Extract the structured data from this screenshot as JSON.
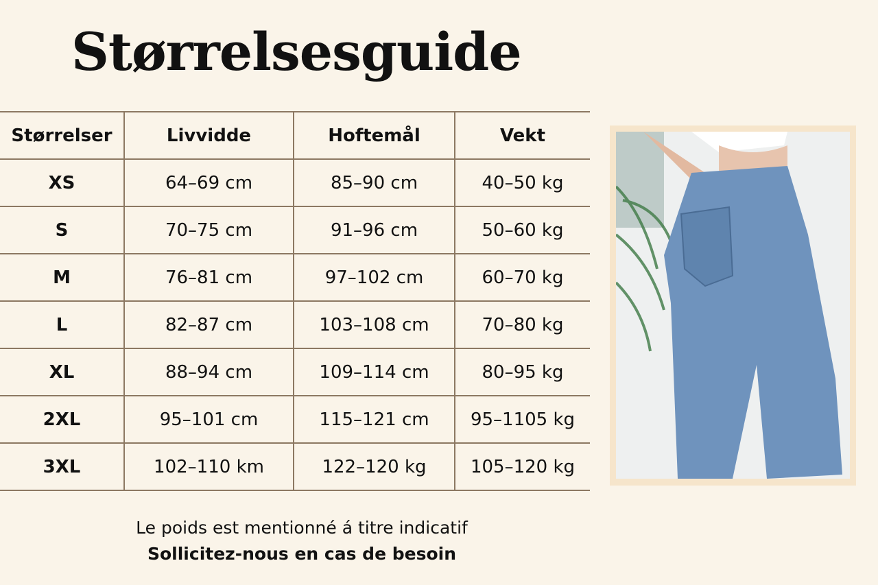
{
  "title": "Størrelsesguide",
  "table": {
    "headers": [
      "Størrelser",
      "Livvidde",
      "Hoftemål",
      "Vekt"
    ],
    "rows": [
      [
        "XS",
        "64–69 cm",
        "85–90 cm",
        "40–50 kg"
      ],
      [
        "S",
        "70–75 cm",
        "91–96 cm",
        "50–60 kg"
      ],
      [
        "M",
        "76–81 cm",
        "97–102 cm",
        "60–70 kg"
      ],
      [
        "L",
        "82–87 cm",
        "103–108 cm",
        "70–80 kg"
      ],
      [
        "XL",
        "88–94 cm",
        "109–114 cm",
        "80–95 kg"
      ],
      [
        "2XL",
        "95–101 cm",
        "115–121 cm",
        "95–1105 kg"
      ],
      [
        "3XL",
        "102–110 km",
        "122–120 kg",
        "105–120 kg"
      ]
    ]
  },
  "notes": {
    "line1": "Le poids est mentionné á titre indicatif",
    "line2": "Sollicitez-nous en cas de besoin"
  },
  "colors": {
    "background": "#faf4e9",
    "border": "#8c7862",
    "frame": "#f6e5cb",
    "denim": "#6f93bd"
  }
}
